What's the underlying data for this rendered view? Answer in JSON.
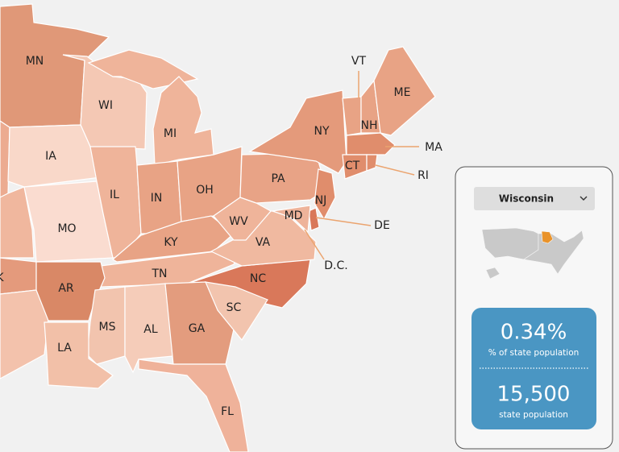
{
  "map": {
    "labels": [
      "MN",
      "WI",
      "MI",
      "IA",
      "IL",
      "IN",
      "OH",
      "MO",
      "KY",
      "WV",
      "PA",
      "NY",
      "VT",
      "NH",
      "ME",
      "MA",
      "CT",
      "RI",
      "NJ",
      "DE",
      "MD",
      "D.C.",
      "VA",
      "TN",
      "NC",
      "K",
      "AR",
      "SC",
      "MS",
      "AL",
      "GA",
      "LA",
      "FL"
    ]
  },
  "panel": {
    "dropdown": "Wisconsin",
    "percent_value": "0.34%",
    "percent_caption": "% of state population",
    "population_value": "15,500",
    "population_caption": "state population"
  }
}
